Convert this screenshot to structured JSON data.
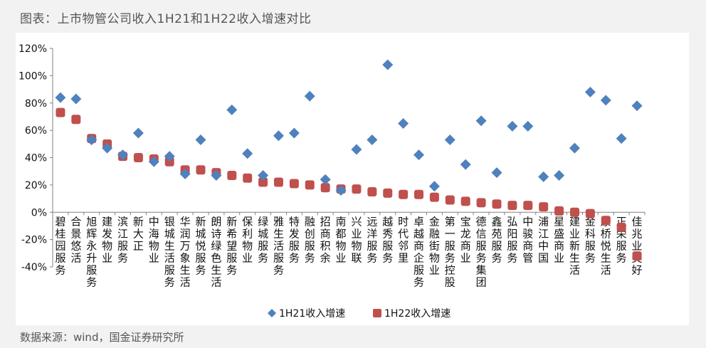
{
  "title": "图表：上市物管公司收入1H21和1H22收入增速对比",
  "source": "数据来源：wind，国金证券研究所",
  "colors": {
    "s1": "#4f81bd",
    "s2": "#c0504d",
    "axis": "#808080",
    "text": "#111111"
  },
  "chart_data": {
    "type": "scatter",
    "categories": [
      "碧桂园服务",
      "合景悠活",
      "旭辉永升服务",
      "建发物业",
      "滨江服务",
      "新大正",
      "中海物业",
      "银城生活服务",
      "华润万象生活",
      "新城悦服务",
      "朗诗绿色生活",
      "新希望服务",
      "保利物业",
      "绿城服务",
      "雅生活服务",
      "特发服务",
      "融创服务",
      "招商积余",
      "南都物业",
      "兴业物联",
      "远洋服务",
      "越秀服务",
      "时代邻里",
      "卓越商企服务",
      "金融街物业",
      "第一服务控股",
      "宝龙商业",
      "德信服务集团",
      "鑫苑服务",
      "弘阳服务",
      "中骏商管",
      "浦江中国",
      "星盛商业",
      "建业新生活",
      "金科服务",
      "康桥悦生活",
      "正荣服务",
      "佳兆业美好"
    ],
    "series": [
      {
        "name": "1H21收入增速",
        "marker": "diamond",
        "values": [
          84,
          83,
          53,
          47,
          42,
          58,
          37,
          41,
          28,
          53,
          27,
          75,
          43,
          27,
          56,
          58,
          85,
          24,
          16,
          46,
          53,
          108,
          65,
          42,
          19,
          53,
          35,
          67,
          29,
          63,
          63,
          26,
          27,
          47,
          88,
          82,
          54,
          78
        ]
      },
      {
        "name": "1H22收入增速",
        "marker": "square",
        "values": [
          73,
          68,
          54,
          50,
          41,
          40,
          39,
          37,
          31,
          31,
          29,
          27,
          25,
          22,
          22,
          21,
          20,
          18,
          17,
          17,
          15,
          14,
          13,
          13,
          11,
          9,
          8,
          7,
          6,
          5,
          5,
          4,
          1,
          0,
          -1,
          -6,
          -11,
          -32
        ]
      }
    ],
    "ylim": [
      -40,
      120
    ],
    "yticks": [
      -40,
      -20,
      0,
      20,
      40,
      60,
      80,
      100,
      120
    ],
    "ytick_labels": [
      "-40%",
      "-20%",
      "0%",
      "20%",
      "40%",
      "60%",
      "80%",
      "100%",
      "120%"
    ],
    "legend_position": "bottom",
    "grid": false
  }
}
